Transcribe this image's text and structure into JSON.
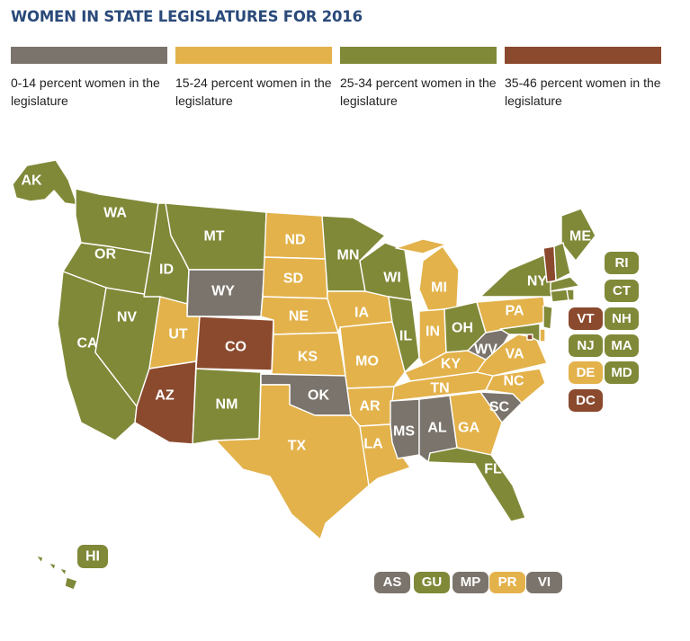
{
  "title": "WOMEN IN STATE LEGISLATURES FOR 2016",
  "colors": {
    "c0": "#7b746c",
    "c1": "#e3b24b",
    "c2": "#808938",
    "c3": "#8b4a2e"
  },
  "legend": [
    {
      "key": "c0",
      "label": "0-14 percent women in the legislature"
    },
    {
      "key": "c1",
      "label": "15-24 percent women in the legislature"
    },
    {
      "key": "c2",
      "label": "25-34 percent women in the legislature"
    },
    {
      "key": "c3",
      "label": "35-46 percent women in the legislature"
    }
  ],
  "states": {
    "WA": "c2",
    "OR": "c2",
    "CA": "c2",
    "NV": "c2",
    "ID": "c2",
    "MT": "c2",
    "WY": "c0",
    "UT": "c1",
    "CO": "c3",
    "AZ": "c3",
    "NM": "c2",
    "ND": "c1",
    "SD": "c1",
    "NE": "c1",
    "KS": "c1",
    "OK": "c0",
    "TX": "c1",
    "MN": "c2",
    "IA": "c1",
    "MO": "c1",
    "AR": "c1",
    "LA": "c1",
    "WI": "c2",
    "IL": "c2",
    "MI": "c1",
    "IN": "c1",
    "OH": "c2",
    "KY": "c1",
    "TN": "c1",
    "MS": "c0",
    "AL": "c0",
    "GA": "c1",
    "FL": "c2",
    "SC": "c0",
    "NC": "c1",
    "VA": "c1",
    "WV": "c0",
    "PA": "c1",
    "NY": "c2",
    "ME": "c2",
    "AK": "c2",
    "HI": "c2",
    "VT": "c3",
    "NH": "c2",
    "MA": "c2",
    "RI": "c2",
    "CT": "c2",
    "NJ": "c2",
    "DE": "c1",
    "MD": "c2",
    "DC": "c3"
  },
  "small_states": [
    {
      "abbr": "RI",
      "key": "c2"
    },
    {
      "abbr": "CT",
      "key": "c2"
    },
    {
      "abbr": "VT",
      "key": "c3"
    },
    {
      "abbr": "NH",
      "key": "c2"
    },
    {
      "abbr": "NJ",
      "key": "c2"
    },
    {
      "abbr": "MA",
      "key": "c2"
    },
    {
      "abbr": "DE",
      "key": "c1"
    },
    {
      "abbr": "MD",
      "key": "c2"
    },
    {
      "abbr": "DC",
      "key": "c3"
    }
  ],
  "territories": [
    {
      "abbr": "AS",
      "key": "c0"
    },
    {
      "abbr": "GU",
      "key": "c2"
    },
    {
      "abbr": "MP",
      "key": "c0"
    },
    {
      "abbr": "PR",
      "key": "c1"
    },
    {
      "abbr": "VI",
      "key": "c0"
    }
  ]
}
